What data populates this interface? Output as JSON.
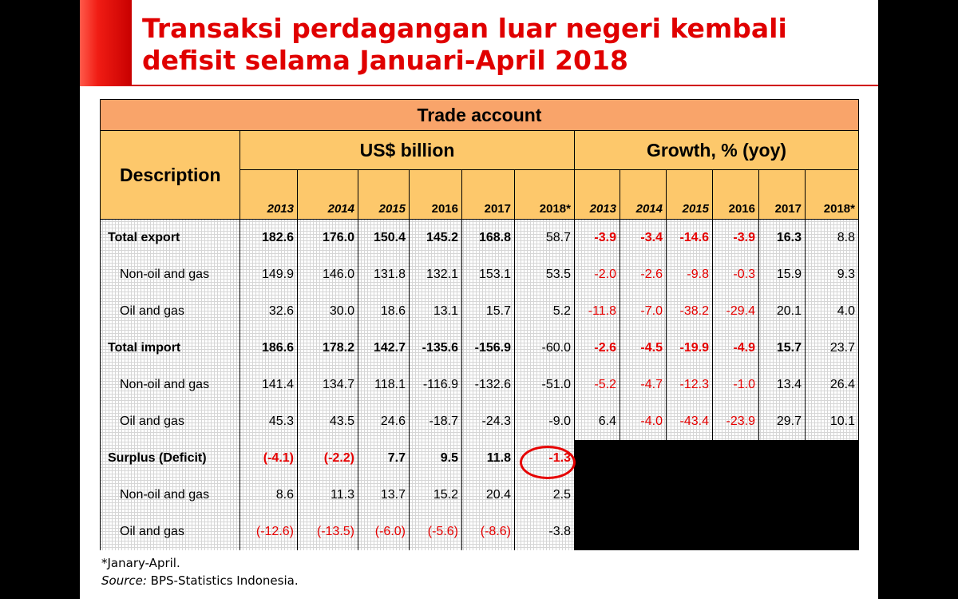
{
  "title": {
    "line1": "Transaksi perdagangan luar negeri kembali",
    "line2": "defisit selama Januari-April 2018"
  },
  "table": {
    "caption": "Trade account",
    "description_header": "Description",
    "group_usd": "US$ billion",
    "group_growth": "Growth, % (yoy)",
    "years": [
      "2013",
      "2014",
      "2015",
      "2016",
      "2017",
      "2018*"
    ],
    "rows": [
      {
        "label": "Total export",
        "usd": [
          "182.6",
          "176.0",
          "150.4",
          "145.2",
          "168.8",
          "58.7"
        ],
        "growth": [
          "-3.9",
          "-3.4",
          "-14.6",
          "-3.9",
          "16.3",
          "8.8"
        ]
      },
      {
        "label": "Non-oil and gas",
        "usd": [
          "149.9",
          "146.0",
          "131.8",
          "132.1",
          "153.1",
          "53.5"
        ],
        "growth": [
          "-2.0",
          "-2.6",
          "-9.8",
          "-0.3",
          "15.9",
          "9.3"
        ]
      },
      {
        "label": "Oil and gas",
        "usd": [
          "32.6",
          "30.0",
          "18.6",
          "13.1",
          "15.7",
          "5.2"
        ],
        "growth": [
          "-11.8",
          "-7.0",
          "-38.2",
          "-29.4",
          "20.1",
          "4.0"
        ]
      },
      {
        "label": "Total import",
        "usd": [
          "186.6",
          "178.2",
          "142.7",
          "-135.6",
          "-156.9",
          "-60.0"
        ],
        "growth": [
          "-2.6",
          "-4.5",
          "-19.9",
          "-4.9",
          "15.7",
          "23.7"
        ]
      },
      {
        "label": "Non-oil and gas",
        "usd": [
          "141.4",
          "134.7",
          "118.1",
          "-116.9",
          "-132.6",
          "-51.0"
        ],
        "growth": [
          "-5.2",
          "-4.7",
          "-12.3",
          "-1.0",
          "13.4",
          "26.4"
        ]
      },
      {
        "label": "Oil and gas",
        "usd": [
          "45.3",
          "43.5",
          "24.6",
          "-18.7",
          "-24.3",
          "-9.0"
        ],
        "growth": [
          "6.4",
          "-4.0",
          "-43.4",
          "-23.9",
          "29.7",
          "10.1"
        ]
      },
      {
        "label": "Surplus (Deficit)",
        "usd": [
          "(-4.1)",
          "(-2.2)",
          "7.7",
          "9.5",
          "11.8",
          "-1.3"
        ]
      },
      {
        "label": "Non-oil and gas",
        "usd": [
          "8.6",
          "11.3",
          "13.7",
          "15.2",
          "20.4",
          "2.5"
        ]
      },
      {
        "label": "Oil and gas",
        "usd": [
          "(-12.6)",
          "(-13.5)",
          "(-6.0)",
          "(-5.6)",
          "(-8.6)",
          "-3.8"
        ]
      }
    ]
  },
  "notes": {
    "footnote": "*Janary-April.",
    "source_label": "Source:",
    "source_text": " BPS-Statistics Indonesia."
  },
  "colors": {
    "title": "#e00000",
    "negative": "#e60000",
    "header_main": "#f9a46a",
    "header": "#fdc86b"
  }
}
